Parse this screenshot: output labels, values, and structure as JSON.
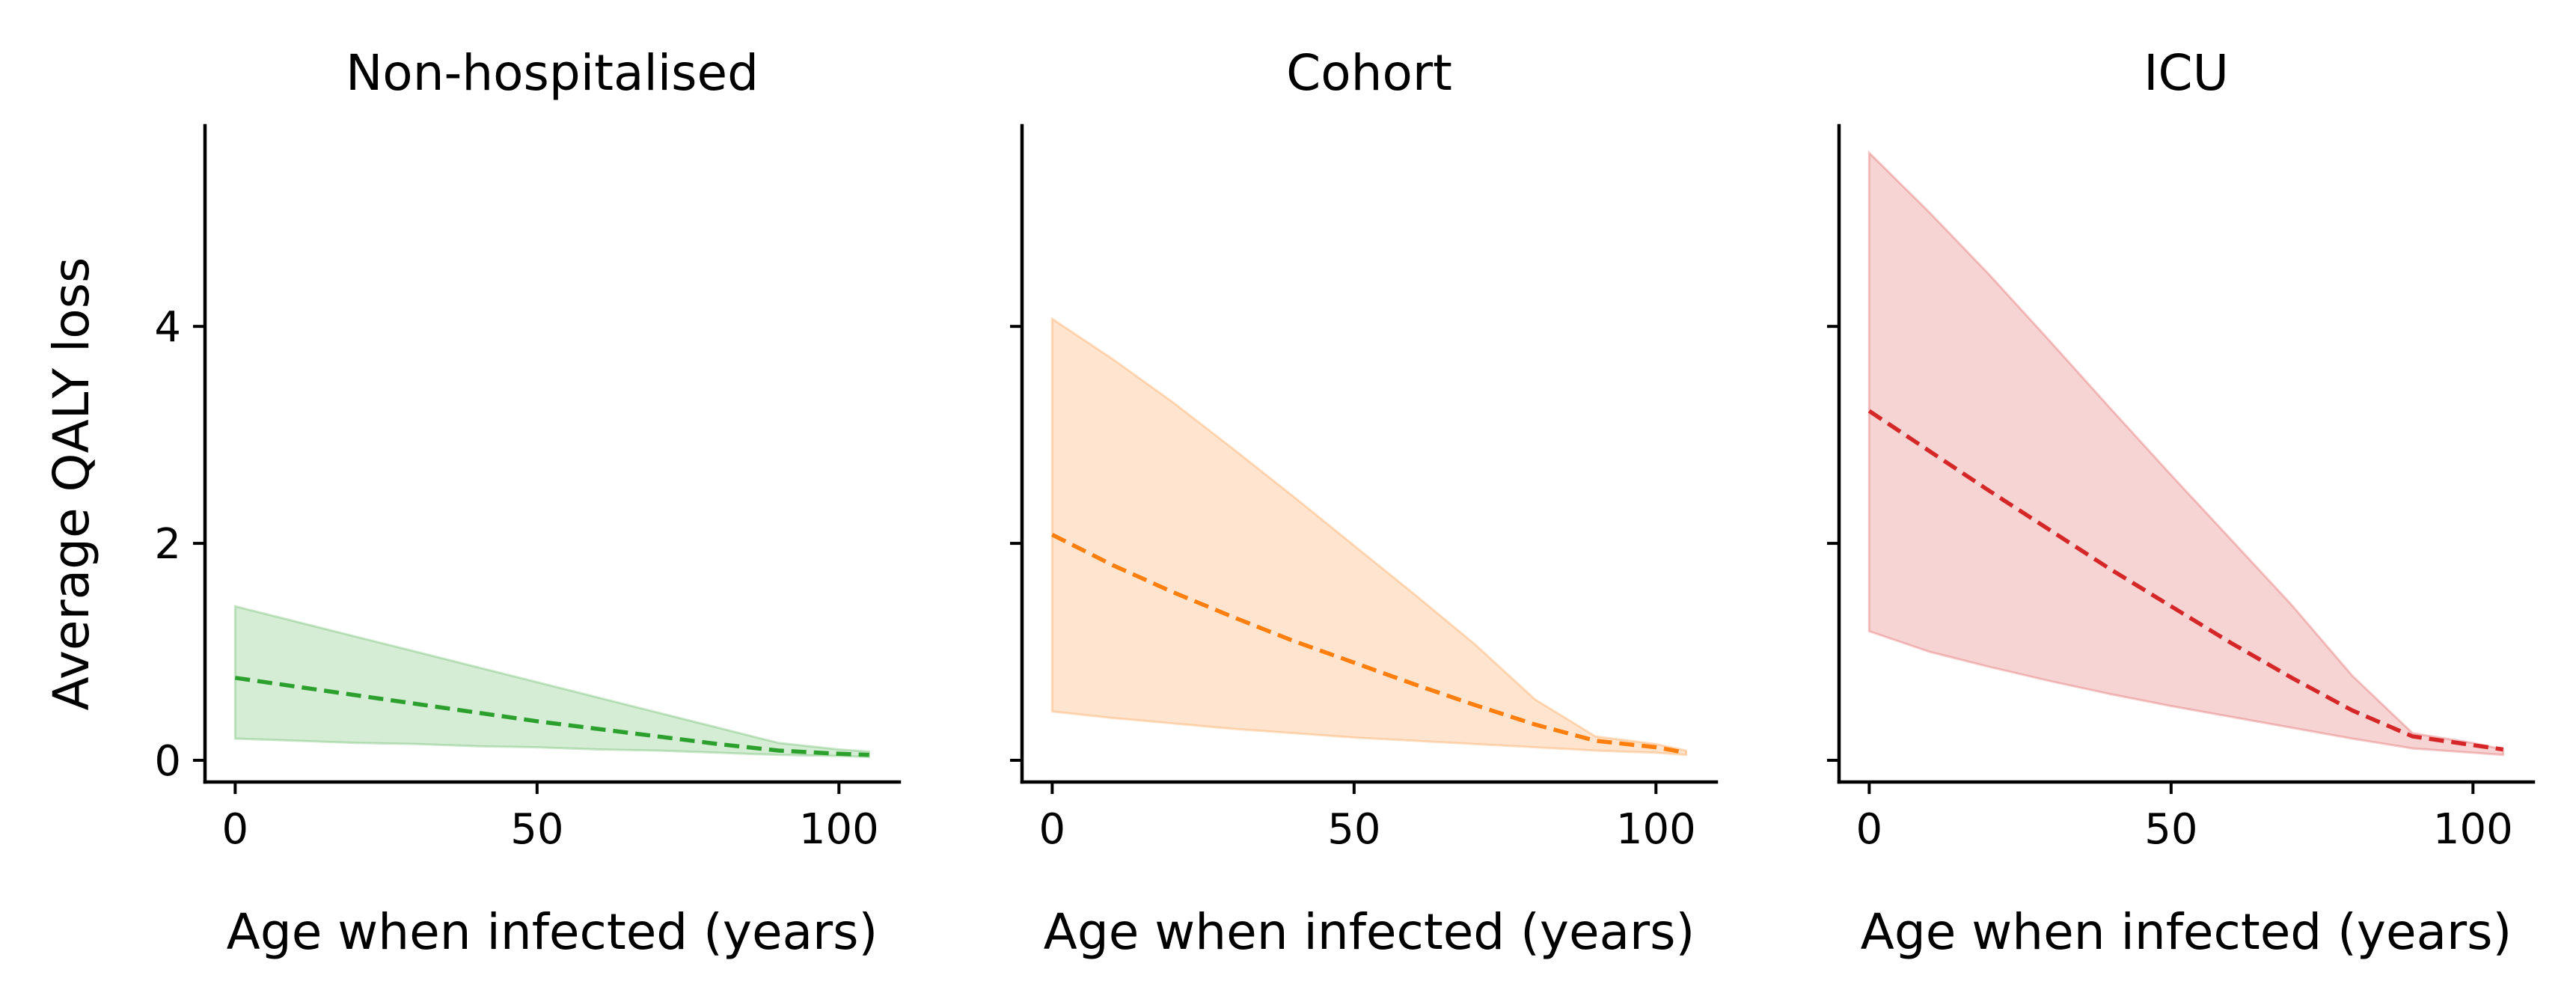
{
  "chart_data": [
    {
      "type": "area",
      "title": "Non-hospitalised",
      "xlabel": "Age when infected (years)",
      "ylabel": "Average QALY loss",
      "xlim": [
        -5,
        110
      ],
      "ylim": [
        -0.2,
        5.85
      ],
      "xticks": [
        "0",
        "50",
        "100"
      ],
      "yticks": [
        "0",
        "2",
        "4"
      ],
      "color": "#2ca02c",
      "fill_color": "#2ca02c",
      "x": [
        0,
        10,
        20,
        30,
        40,
        50,
        60,
        70,
        80,
        90,
        100,
        105
      ],
      "series": [
        {
          "values": [
            0.76,
            0.68,
            0.6,
            0.52,
            0.44,
            0.36,
            0.29,
            0.22,
            0.15,
            0.09,
            0.06,
            0.05
          ]
        },
        {
          "values": [
            1.42,
            1.28,
            1.14,
            1.0,
            0.86,
            0.72,
            0.58,
            0.44,
            0.3,
            0.16,
            0.1,
            0.08
          ]
        },
        {
          "values": [
            0.2,
            0.18,
            0.16,
            0.15,
            0.13,
            0.12,
            0.1,
            0.09,
            0.07,
            0.05,
            0.04,
            0.03
          ]
        }
      ]
    },
    {
      "type": "area",
      "title": "Cohort",
      "xlabel": "Age when infected (years)",
      "ylabel": "",
      "xlim": [
        -5,
        110
      ],
      "ylim": [
        -0.2,
        5.85
      ],
      "xticks": [
        "0",
        "50",
        "100"
      ],
      "yticks": [
        "0",
        "2",
        "4"
      ],
      "color": "#ff7f0e",
      "fill_color": "#ff7f0e",
      "x": [
        0,
        10,
        20,
        30,
        40,
        50,
        60,
        70,
        80,
        90,
        100,
        105
      ],
      "series": [
        {
          "values": [
            2.08,
            1.8,
            1.55,
            1.32,
            1.1,
            0.9,
            0.7,
            0.51,
            0.33,
            0.18,
            0.12,
            0.07
          ]
        },
        {
          "values": [
            4.07,
            3.7,
            3.3,
            2.87,
            2.43,
            1.98,
            1.53,
            1.07,
            0.56,
            0.22,
            0.15,
            0.09
          ]
        },
        {
          "values": [
            0.45,
            0.39,
            0.34,
            0.29,
            0.25,
            0.21,
            0.18,
            0.15,
            0.12,
            0.09,
            0.07,
            0.05
          ]
        }
      ]
    },
    {
      "type": "area",
      "title": "ICU",
      "xlabel": "Age when infected (years)",
      "ylabel": "",
      "xlim": [
        -5,
        110
      ],
      "ylim": [
        -0.2,
        5.85
      ],
      "xticks": [
        "0",
        "50",
        "100"
      ],
      "yticks": [
        "0",
        "2",
        "4"
      ],
      "color": "#d62728",
      "fill_color": "#d62728",
      "x": [
        0,
        10,
        20,
        30,
        40,
        50,
        60,
        70,
        80,
        90,
        100,
        105
      ],
      "series": [
        {
          "values": [
            3.22,
            2.85,
            2.48,
            2.12,
            1.76,
            1.42,
            1.08,
            0.76,
            0.46,
            0.22,
            0.14,
            0.1
          ]
        },
        {
          "values": [
            5.6,
            5.05,
            4.47,
            3.86,
            3.24,
            2.63,
            2.03,
            1.43,
            0.78,
            0.25,
            0.16,
            0.1
          ]
        },
        {
          "values": [
            1.19,
            1.0,
            0.86,
            0.73,
            0.61,
            0.5,
            0.4,
            0.3,
            0.2,
            0.11,
            0.07,
            0.05
          ]
        }
      ]
    }
  ]
}
